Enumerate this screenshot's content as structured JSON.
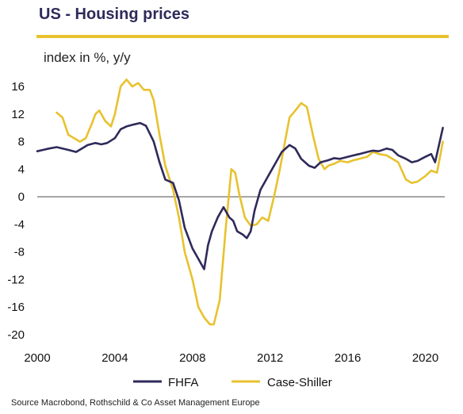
{
  "header": {
    "title": "US - Housing prices",
    "subtitle": "index in %, y/y"
  },
  "footer": {
    "source": "Source Macrobond, Rothschild & Co Asset Management Europe"
  },
  "colors": {
    "fhfa": "#2e2a5a",
    "case_shiller": "#e8c22e",
    "zero_line": "#888888",
    "rule": "#e8c22e"
  },
  "chart_data": {
    "type": "line",
    "title": "US - Housing prices",
    "subtitle": "index in %, y/y",
    "xlabel": "",
    "ylabel": "",
    "xlim": [
      2000,
      2021
    ],
    "ylim": [
      -20,
      16
    ],
    "xticks": [
      2000,
      2004,
      2008,
      2012,
      2016,
      2020
    ],
    "yticks": [
      -20,
      -16,
      -12,
      -8,
      -4,
      0,
      4,
      8,
      12,
      16
    ],
    "grid": false,
    "legend": "bottom",
    "series": [
      {
        "name": "FHFA",
        "color": "#2e2a5a",
        "x": [
          2000.0,
          2000.3,
          2000.6,
          2001.0,
          2001.3,
          2001.6,
          2002.0,
          2002.3,
          2002.6,
          2003.0,
          2003.3,
          2003.6,
          2004.0,
          2004.3,
          2004.6,
          2005.0,
          2005.3,
          2005.6,
          2006.0,
          2006.3,
          2006.6,
          2007.0,
          2007.3,
          2007.6,
          2008.0,
          2008.3,
          2008.6,
          2008.8,
          2009.0,
          2009.3,
          2009.6,
          2009.9,
          2010.1,
          2010.3,
          2010.6,
          2010.8,
          2011.0,
          2011.2,
          2011.5,
          2011.8,
          2012.0,
          2012.3,
          2012.6,
          2013.0,
          2013.3,
          2013.6,
          2014.0,
          2014.3,
          2014.6,
          2015.0,
          2015.3,
          2015.6,
          2016.0,
          2016.3,
          2016.6,
          2017.0,
          2017.3,
          2017.6,
          2018.0,
          2018.3,
          2018.6,
          2019.0,
          2019.3,
          2019.6,
          2020.0,
          2020.3,
          2020.5,
          2020.7,
          2020.9
        ],
        "values": [
          6.6,
          6.8,
          7.0,
          7.2,
          7.0,
          6.8,
          6.5,
          7.0,
          7.5,
          7.8,
          7.6,
          7.8,
          8.5,
          9.8,
          10.2,
          10.5,
          10.7,
          10.3,
          8.0,
          5.0,
          2.5,
          2.0,
          -0.5,
          -4.5,
          -7.5,
          -9.0,
          -10.5,
          -7.0,
          -5.0,
          -3.0,
          -1.5,
          -3.0,
          -3.5,
          -5.0,
          -5.5,
          -6.0,
          -5.0,
          -2.0,
          1.0,
          2.5,
          3.5,
          5.0,
          6.5,
          7.5,
          7.0,
          5.5,
          4.5,
          4.2,
          5.0,
          5.3,
          5.6,
          5.5,
          5.8,
          6.0,
          6.2,
          6.5,
          6.7,
          6.6,
          7.0,
          6.8,
          6.0,
          5.5,
          5.0,
          5.2,
          5.8,
          6.2,
          5.0,
          7.5,
          10.0
        ]
      },
      {
        "name": "Case-Shiller",
        "color": "#e8c22e",
        "x": [
          2001.0,
          2001.3,
          2001.6,
          2001.9,
          2002.2,
          2002.5,
          2002.8,
          2003.0,
          2003.2,
          2003.5,
          2003.8,
          2004.0,
          2004.3,
          2004.6,
          2004.9,
          2005.2,
          2005.5,
          2005.8,
          2006.0,
          2006.3,
          2006.6,
          2007.0,
          2007.3,
          2007.6,
          2008.0,
          2008.3,
          2008.6,
          2008.9,
          2009.1,
          2009.4,
          2009.7,
          2010.0,
          2010.2,
          2010.4,
          2010.7,
          2011.0,
          2011.3,
          2011.6,
          2011.9,
          2012.2,
          2012.5,
          2012.8,
          2013.0,
          2013.3,
          2013.6,
          2013.9,
          2014.2,
          2014.5,
          2014.8,
          2015.0,
          2015.3,
          2015.6,
          2016.0,
          2016.3,
          2016.6,
          2017.0,
          2017.3,
          2017.6,
          2018.0,
          2018.3,
          2018.6,
          2019.0,
          2019.3,
          2019.6,
          2020.0,
          2020.3,
          2020.6,
          2020.9
        ],
        "values": [
          12.2,
          11.5,
          9.0,
          8.5,
          8.0,
          8.5,
          10.5,
          12.0,
          12.5,
          11.0,
          10.2,
          12.0,
          16.0,
          17.0,
          16.0,
          16.5,
          15.5,
          15.5,
          14.0,
          9.0,
          4.5,
          1.0,
          -3.0,
          -8.0,
          -12.0,
          -16.0,
          -17.5,
          -18.5,
          -18.5,
          -15.0,
          -5.0,
          4.0,
          3.5,
          0.5,
          -3.0,
          -4.2,
          -4.0,
          -3.0,
          -3.5,
          0.0,
          4.0,
          8.5,
          11.5,
          12.5,
          13.6,
          13.0,
          9.0,
          5.5,
          4.0,
          4.5,
          4.8,
          5.2,
          5.0,
          5.3,
          5.5,
          5.8,
          6.5,
          6.2,
          6.0,
          5.5,
          5.0,
          2.5,
          2.0,
          2.2,
          3.0,
          3.8,
          3.5,
          8.0
        ]
      }
    ]
  }
}
